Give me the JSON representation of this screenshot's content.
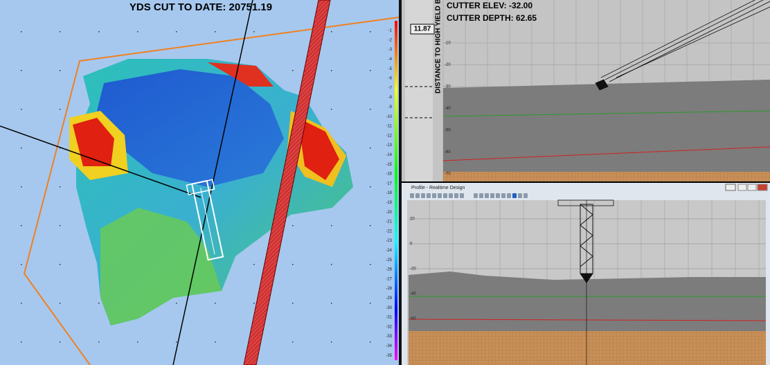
{
  "map": {
    "title": "YDS CUT TO DATE: 20751.19",
    "scale_labels": [
      -1,
      -2,
      -3,
      -4,
      -5,
      -6,
      -7,
      -8,
      -9,
      -10,
      -11,
      -12,
      -13,
      -14,
      -15,
      -16,
      -17,
      -18,
      -19,
      -20,
      -21,
      -22,
      -23,
      -24,
      -25,
      -26,
      -27,
      -28,
      -29,
      -30,
      -31,
      -32,
      -33,
      -34,
      -35
    ]
  },
  "profile_top": {
    "cutter_elev": "CUTTER ELEV: -32.00",
    "cutter_depth": "CUTTER DEPTH: 62.65",
    "distance_value": "11.87",
    "distance_label": "DISTANCE TO HIGH YIELD BA",
    "y_labels": [
      -10,
      -20,
      -30,
      -40,
      -50,
      -60,
      -70
    ]
  },
  "profile_window": {
    "title": "Profile - Realtime Design",
    "y_labels": [
      20,
      0,
      -20,
      -40,
      -60
    ]
  }
}
